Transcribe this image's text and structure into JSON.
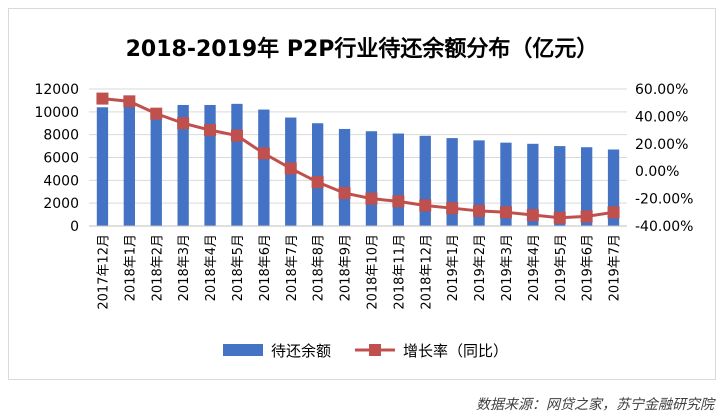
{
  "chart_data": {
    "type": "bar",
    "title": "2018-2019年 P2P行业待还余额分布（亿元）",
    "categories": [
      "2017年12月",
      "2018年1月",
      "2018年2月",
      "2018年3月",
      "2018年4月",
      "2018年5月",
      "2018年6月",
      "2018年7月",
      "2018年8月",
      "2018年9月",
      "2018年10月",
      "2018年11月",
      "2018年12月",
      "2019年1月",
      "2019年2月",
      "2019年3月",
      "2019年4月",
      "2019年5月",
      "2019年6月",
      "2019年7月"
    ],
    "series": [
      {
        "name": "待还余额",
        "type": "bar",
        "axis": "left",
        "color": "#4472c4",
        "values": [
          10400,
          10700,
          10300,
          10600,
          10600,
          10700,
          10200,
          9500,
          9000,
          8500,
          8300,
          8100,
          7900,
          7700,
          7500,
          7300,
          7200,
          7000,
          6900,
          6700
        ]
      },
      {
        "name": "增长率（同比）",
        "type": "line",
        "axis": "right",
        "color": "#c0504d",
        "values": [
          53,
          51,
          42,
          35,
          30,
          26,
          13,
          2,
          -8,
          -16,
          -20,
          -22,
          -25,
          -27,
          -29,
          -30,
          -32,
          -34,
          -33,
          -30
        ]
      }
    ],
    "ylim": [
      0,
      12000
    ],
    "yticks": [
      "0",
      "2000",
      "4000",
      "6000",
      "8000",
      "10000",
      "12000"
    ],
    "y2lim": [
      -40,
      60
    ],
    "y2ticks": [
      "-40.00%",
      "-20.00%",
      "0.00%",
      "20.00%",
      "40.00%",
      "60.00%"
    ],
    "grid": true,
    "legend": "bottom"
  },
  "source": "数据来源：网贷之家，苏宁金融研究院"
}
